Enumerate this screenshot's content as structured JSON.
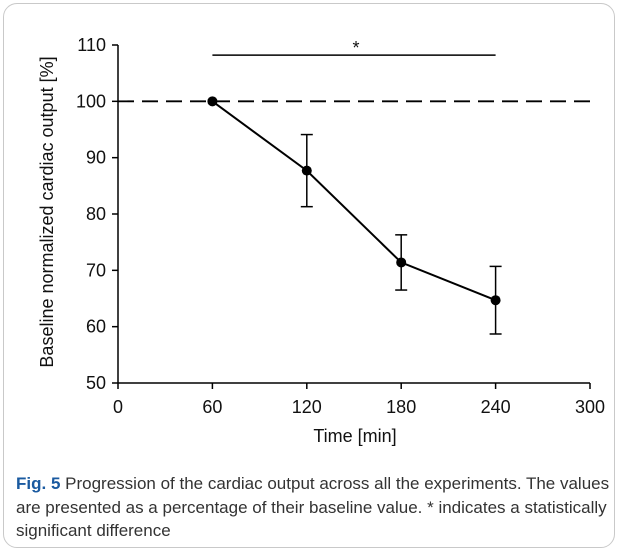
{
  "chart_data": {
    "type": "line",
    "xlabel": "Time [min]",
    "ylabel": "Baseline normalized cardiac output [%]",
    "xlim": [
      0,
      300
    ],
    "ylim": [
      50,
      110
    ],
    "x_ticks": [
      "0",
      "60",
      "120",
      "180",
      "240",
      "300"
    ],
    "y_ticks": [
      "50",
      "60",
      "70",
      "80",
      "90",
      "100",
      "110"
    ],
    "grid": false,
    "series": [
      {
        "x": [
          60,
          120,
          180,
          240
        ],
        "y": [
          100,
          87.7,
          71.4,
          64.7
        ],
        "error": [
          0,
          6.4,
          4.9,
          6.0
        ]
      }
    ],
    "reference_line": {
      "y": 100,
      "style": "dashed"
    },
    "significance": {
      "x_start": 60,
      "x_end": 240,
      "y": 108.2,
      "label": "*"
    }
  },
  "caption": {
    "label": "Fig. 5",
    "text": "Progression of the cardiac output across all the experiments. The values are presented as a percentage of their baseline value. * indicates a statistically significant difference"
  }
}
